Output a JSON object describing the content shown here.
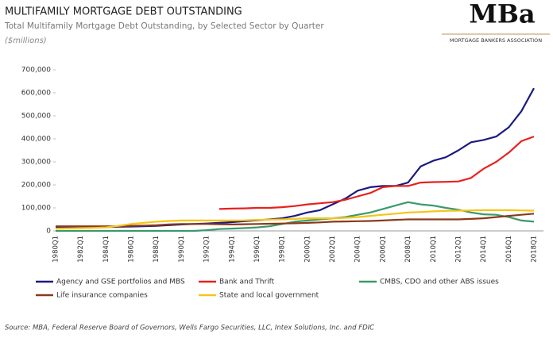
{
  "header": {
    "logo": "MBa",
    "org": "MORTGAGE BANKERS ASSOCIATION"
  },
  "chart_data": {
    "type": "line",
    "title": "MULTIFAMILY MORTGAGE DEBT OUTSTANDING",
    "subtitle": "Total Multifamily Mortgage Debt Outstanding, by Selected Sector by Quarter",
    "ylabel": "($millions)",
    "source": "Source:  MBA, Federal Reserve Board of Governors, Wells Fargo Securities, LLC, Intex Solutions, Inc. and FDIC",
    "categories": [
      "1980Q1",
      null,
      "1982Q1",
      null,
      "1984Q1",
      null,
      "1986Q1",
      null,
      "1988Q1",
      null,
      "1990Q1",
      null,
      "1992Q1",
      null,
      "1994Q1",
      null,
      "1996Q1",
      null,
      "1998Q1",
      null,
      "2000Q1",
      null,
      "2002Q1",
      null,
      "2004Q1",
      null,
      "2006Q1",
      null,
      "2008Q1",
      null,
      "2010Q1",
      null,
      "2012Q1",
      null,
      "2014Q1",
      null,
      "2016Q1",
      null,
      "2018Q1"
    ],
    "ylim": [
      0,
      700000
    ],
    "yticks": [
      0,
      {
        "value": 100000,
        "label": "100,000"
      },
      {
        "value": 200000,
        "label": "200,000"
      },
      {
        "value": 300000,
        "label": "300,000"
      },
      {
        "value": 400000,
        "label": "400,000"
      },
      {
        "value": 500000,
        "label": "500,000"
      },
      {
        "value": 600000,
        "label": "600,000"
      },
      {
        "value": 700000,
        "label": "700,000"
      }
    ],
    "grid": false,
    "series": [
      {
        "name": "Agency and GSE portfolios and MBS",
        "color": "#1a1a80",
        "values": [
          15000,
          15000,
          16000,
          16000,
          17000,
          18000,
          19000,
          20000,
          22000,
          25000,
          28000,
          30000,
          32000,
          35000,
          38000,
          42000,
          46000,
          50000,
          55000,
          65000,
          80000,
          90000,
          115000,
          140000,
          175000,
          190000,
          195000,
          195000,
          210000,
          280000,
          305000,
          320000,
          350000,
          385000,
          395000,
          410000,
          450000,
          520000,
          620000
        ]
      },
      {
        "name": "Bank and Thrift",
        "color": "#e8211d",
        "values": [
          null,
          null,
          null,
          null,
          null,
          null,
          null,
          null,
          null,
          null,
          null,
          null,
          null,
          95000,
          97000,
          98000,
          100000,
          100000,
          103000,
          108000,
          115000,
          120000,
          125000,
          135000,
          150000,
          165000,
          190000,
          195000,
          195000,
          210000,
          212000,
          213000,
          215000,
          230000,
          270000,
          300000,
          340000,
          390000,
          410000
        ]
      },
      {
        "name": "CMBS, CDO and other ABS issues",
        "color": "#3a9a6a",
        "values": [
          0,
          0,
          0,
          0,
          0,
          0,
          0,
          0,
          0,
          0,
          0,
          0,
          3000,
          8000,
          10000,
          12000,
          15000,
          20000,
          30000,
          40000,
          45000,
          50000,
          55000,
          60000,
          70000,
          80000,
          95000,
          110000,
          125000,
          115000,
          110000,
          100000,
          92000,
          80000,
          72000,
          70000,
          60000,
          45000,
          40000
        ]
      },
      {
        "name": "Life insurance companies",
        "color": "#8b3a1a",
        "values": [
          20000,
          20000,
          20000,
          20000,
          20000,
          20000,
          22000,
          23000,
          25000,
          28000,
          30000,
          30000,
          30000,
          29000,
          28000,
          29000,
          30000,
          31000,
          32000,
          33000,
          35000,
          37000,
          40000,
          41000,
          42000,
          43000,
          45000,
          48000,
          50000,
          50000,
          50000,
          50000,
          50000,
          52000,
          55000,
          60000,
          65000,
          70000,
          75000
        ]
      },
      {
        "name": "State and local government",
        "color": "#f5c518",
        "values": [
          10000,
          11000,
          12000,
          13000,
          15000,
          22000,
          30000,
          35000,
          40000,
          43000,
          45000,
          45000,
          45000,
          45000,
          45000,
          46000,
          48000,
          49000,
          50000,
          52000,
          55000,
          55000,
          55000,
          57000,
          60000,
          65000,
          70000,
          75000,
          80000,
          82000,
          85000,
          87000,
          88000,
          89000,
          90000,
          90000,
          90000,
          89000,
          88000
        ]
      }
    ]
  }
}
